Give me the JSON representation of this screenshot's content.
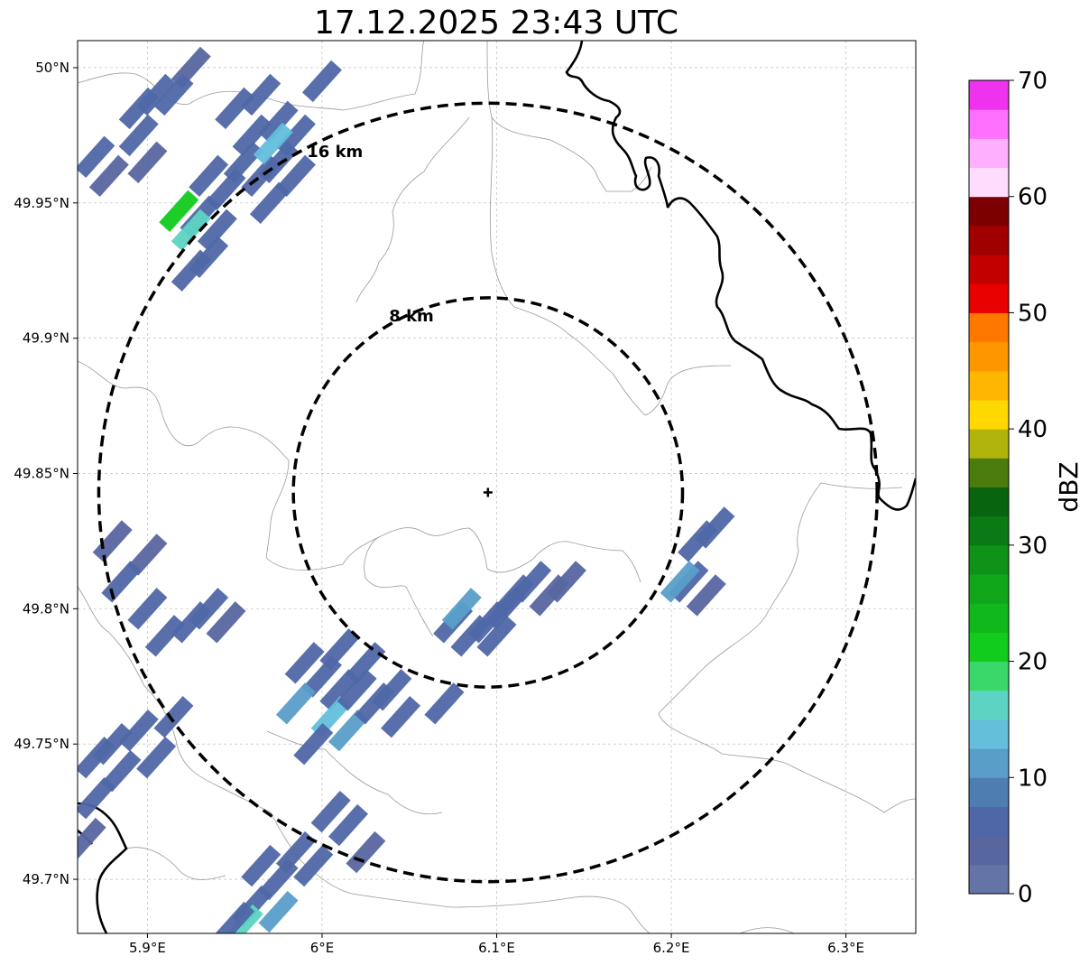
{
  "title": "17.12.2025 23:43 UTC",
  "map": {
    "extent": {
      "lon_min": 5.86,
      "lon_max": 6.34,
      "lat_min": 49.68,
      "lat_max": 50.01
    },
    "center": {
      "lon": 6.095,
      "lat": 49.843
    },
    "center_marker": "plus-icon",
    "x_ticks": [
      {
        "value": 5.9,
        "label": "5.9°E"
      },
      {
        "value": 6.0,
        "label": "6°E"
      },
      {
        "value": 6.1,
        "label": "6.1°E"
      },
      {
        "value": 6.2,
        "label": "6.2°E"
      },
      {
        "value": 6.3,
        "label": "6.3°E"
      }
    ],
    "y_ticks": [
      {
        "value": 49.7,
        "label": "49.7°N"
      },
      {
        "value": 49.75,
        "label": "49.75°N"
      },
      {
        "value": 49.8,
        "label": "49.8°N"
      },
      {
        "value": 49.85,
        "label": "49.85°N"
      },
      {
        "value": 49.9,
        "label": "49.9°N"
      },
      {
        "value": 49.95,
        "label": "49.95°N"
      },
      {
        "value": 50.0,
        "label": "50°N"
      }
    ],
    "grid": true,
    "range_rings": [
      {
        "radius_km": 8,
        "label": "8 km",
        "style": "dashed"
      },
      {
        "radius_km": 16,
        "label": "16 km",
        "style": "dashed"
      }
    ]
  },
  "echoes": [
    {
      "lon": 5.87,
      "lat": 49.967,
      "dbz": 5
    },
    {
      "lon": 5.878,
      "lat": 49.96,
      "dbz": 4
    },
    {
      "lon": 5.895,
      "lat": 49.985,
      "dbz": 5
    },
    {
      "lon": 5.905,
      "lat": 49.99,
      "dbz": 5
    },
    {
      "lon": 5.895,
      "lat": 49.975,
      "dbz": 5
    },
    {
      "lon": 5.925,
      "lat": 50.0,
      "dbz": 4
    },
    {
      "lon": 5.915,
      "lat": 49.99,
      "dbz": 5
    },
    {
      "lon": 5.9,
      "lat": 49.965,
      "dbz": 4
    },
    {
      "lon": 5.935,
      "lat": 49.96,
      "dbz": 5
    },
    {
      "lon": 5.945,
      "lat": 49.955,
      "dbz": 5
    },
    {
      "lon": 5.955,
      "lat": 49.965,
      "dbz": 5
    },
    {
      "lon": 5.965,
      "lat": 49.96,
      "dbz": 5
    },
    {
      "lon": 5.96,
      "lat": 49.975,
      "dbz": 5
    },
    {
      "lon": 5.95,
      "lat": 49.985,
      "dbz": 5
    },
    {
      "lon": 5.965,
      "lat": 49.99,
      "dbz": 5
    },
    {
      "lon": 5.975,
      "lat": 49.98,
      "dbz": 6
    },
    {
      "lon": 5.985,
      "lat": 49.975,
      "dbz": 5
    },
    {
      "lon": 5.975,
      "lat": 49.965,
      "dbz": 6
    },
    {
      "lon": 5.985,
      "lat": 49.96,
      "dbz": 5
    },
    {
      "lon": 5.97,
      "lat": 49.95,
      "dbz": 5
    },
    {
      "lon": 5.93,
      "lat": 49.945,
      "dbz": 5
    },
    {
      "lon": 5.94,
      "lat": 49.94,
      "dbz": 6
    },
    {
      "lon": 5.935,
      "lat": 49.93,
      "dbz": 5
    },
    {
      "lon": 5.925,
      "lat": 49.925,
      "dbz": 5
    },
    {
      "lon": 5.918,
      "lat": 49.947,
      "dbz": 22
    },
    {
      "lon": 5.925,
      "lat": 49.94,
      "dbz": 17
    },
    {
      "lon": 5.972,
      "lat": 49.972,
      "dbz": 13
    },
    {
      "lon": 6.0,
      "lat": 49.995,
      "dbz": 5
    },
    {
      "lon": 5.88,
      "lat": 49.825,
      "dbz": 4
    },
    {
      "lon": 5.9,
      "lat": 49.82,
      "dbz": 4
    },
    {
      "lon": 5.885,
      "lat": 49.81,
      "dbz": 5
    },
    {
      "lon": 5.9,
      "lat": 49.8,
      "dbz": 5
    },
    {
      "lon": 5.91,
      "lat": 49.79,
      "dbz": 5
    },
    {
      "lon": 5.925,
      "lat": 49.795,
      "dbz": 5
    },
    {
      "lon": 5.935,
      "lat": 49.8,
      "dbz": 5
    },
    {
      "lon": 5.945,
      "lat": 49.795,
      "dbz": 4
    },
    {
      "lon": 5.87,
      "lat": 49.745,
      "dbz": 5
    },
    {
      "lon": 5.88,
      "lat": 49.75,
      "dbz": 6
    },
    {
      "lon": 5.885,
      "lat": 49.74,
      "dbz": 5
    },
    {
      "lon": 5.895,
      "lat": 49.755,
      "dbz": 5
    },
    {
      "lon": 5.87,
      "lat": 49.73,
      "dbz": 5
    },
    {
      "lon": 5.905,
      "lat": 49.745,
      "dbz": 5
    },
    {
      "lon": 5.915,
      "lat": 49.76,
      "dbz": 5
    },
    {
      "lon": 5.865,
      "lat": 49.715,
      "dbz": 4
    },
    {
      "lon": 5.99,
      "lat": 49.78,
      "dbz": 5
    },
    {
      "lon": 6.0,
      "lat": 49.775,
      "dbz": 5
    },
    {
      "lon": 6.01,
      "lat": 49.77,
      "dbz": 5
    },
    {
      "lon": 5.985,
      "lat": 49.765,
      "dbz": 11
    },
    {
      "lon": 6.005,
      "lat": 49.76,
      "dbz": 13
    },
    {
      "lon": 6.015,
      "lat": 49.755,
      "dbz": 12
    },
    {
      "lon": 6.02,
      "lat": 49.77,
      "dbz": 6
    },
    {
      "lon": 6.03,
      "lat": 49.765,
      "dbz": 5
    },
    {
      "lon": 6.04,
      "lat": 49.77,
      "dbz": 5
    },
    {
      "lon": 5.995,
      "lat": 49.75,
      "dbz": 5
    },
    {
      "lon": 6.01,
      "lat": 49.785,
      "dbz": 5
    },
    {
      "lon": 6.025,
      "lat": 49.78,
      "dbz": 5
    },
    {
      "lon": 6.045,
      "lat": 49.76,
      "dbz": 5
    },
    {
      "lon": 6.07,
      "lat": 49.765,
      "dbz": 5
    },
    {
      "lon": 5.965,
      "lat": 49.705,
      "dbz": 5
    },
    {
      "lon": 5.975,
      "lat": 49.7,
      "dbz": 5
    },
    {
      "lon": 5.985,
      "lat": 49.71,
      "dbz": 5
    },
    {
      "lon": 5.995,
      "lat": 49.705,
      "dbz": 5
    },
    {
      "lon": 5.96,
      "lat": 49.69,
      "dbz": 5
    },
    {
      "lon": 5.955,
      "lat": 49.683,
      "dbz": 16
    },
    {
      "lon": 5.975,
      "lat": 49.688,
      "dbz": 11
    },
    {
      "lon": 5.95,
      "lat": 49.684,
      "dbz": 5
    },
    {
      "lon": 6.015,
      "lat": 49.72,
      "dbz": 5
    },
    {
      "lon": 6.025,
      "lat": 49.71,
      "dbz": 4
    },
    {
      "lon": 6.005,
      "lat": 49.725,
      "dbz": 5
    },
    {
      "lon": 6.075,
      "lat": 49.795,
      "dbz": 5
    },
    {
      "lon": 6.085,
      "lat": 49.79,
      "dbz": 5
    },
    {
      "lon": 6.095,
      "lat": 49.795,
      "dbz": 5
    },
    {
      "lon": 6.105,
      "lat": 49.8,
      "dbz": 5
    },
    {
      "lon": 6.11,
      "lat": 49.805,
      "dbz": 5
    },
    {
      "lon": 6.12,
      "lat": 49.81,
      "dbz": 5
    },
    {
      "lon": 6.13,
      "lat": 49.805,
      "dbz": 4
    },
    {
      "lon": 6.14,
      "lat": 49.81,
      "dbz": 4
    },
    {
      "lon": 6.08,
      "lat": 49.8,
      "dbz": 12
    },
    {
      "lon": 6.1,
      "lat": 49.79,
      "dbz": 6
    },
    {
      "lon": 6.215,
      "lat": 49.825,
      "dbz": 5
    },
    {
      "lon": 6.225,
      "lat": 49.83,
      "dbz": 5
    },
    {
      "lon": 6.21,
      "lat": 49.81,
      "dbz": 5
    },
    {
      "lon": 6.205,
      "lat": 49.81,
      "dbz": 11
    },
    {
      "lon": 6.22,
      "lat": 49.805,
      "dbz": 4
    }
  ],
  "colorbar": {
    "label": "dBZ",
    "min": 0,
    "max": 70,
    "tick_labels": [
      "0",
      "10",
      "20",
      "30",
      "40",
      "50",
      "60",
      "70"
    ],
    "colors": [
      "#6474a6",
      "#5866a0",
      "#4f67a6",
      "#4e7db2",
      "#599ec9",
      "#63bfdc",
      "#5dd3c3",
      "#3cd76a",
      "#11cb1d",
      "#10b81b",
      "#0fa61a",
      "#0e9318",
      "#0b7a14",
      "#08640f",
      "#4a7b0c",
      "#b0b30c",
      "#fed800",
      "#feb600",
      "#fe9600",
      "#fe7800",
      "#e80000",
      "#c20000",
      "#a00000",
      "#7c0000",
      "#fedcfe",
      "#feb0fe",
      "#fe70fe",
      "#ee32ee"
    ]
  }
}
